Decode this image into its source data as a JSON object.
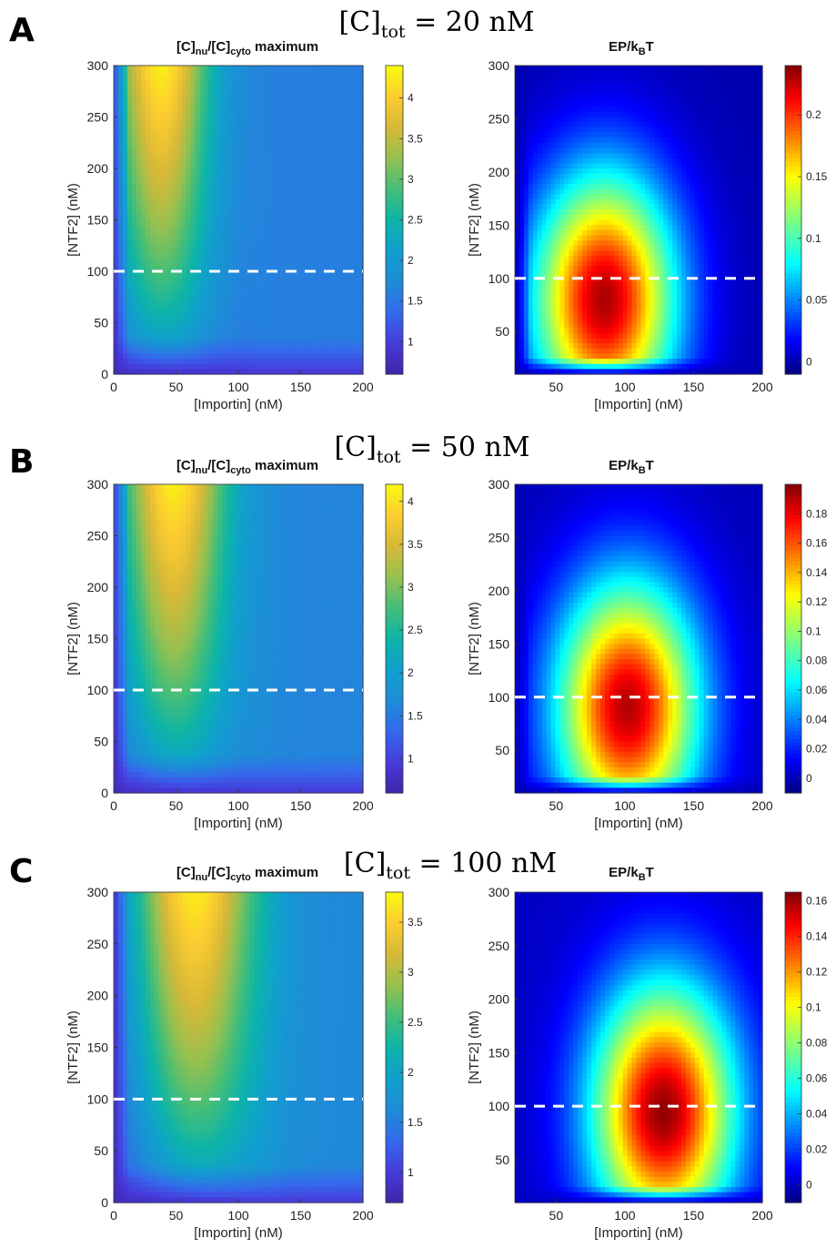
{
  "figure": {
    "x_axis_label": "[Importin] (nM)",
    "y_axis_label": "[NTF2] (nM)",
    "dashed_line_ntf2": 100,
    "rows": [
      {
        "letter": "A",
        "title_base": "[C]",
        "title_sub": "tot",
        "title_rest": " = 20 nM"
      },
      {
        "letter": "B",
        "title_base": "[C]",
        "title_sub": "tot",
        "title_rest": " = 50 nM"
      },
      {
        "letter": "C",
        "title_base": "[C]",
        "title_sub": "tot",
        "title_rest": " = 100 nM"
      }
    ],
    "left_title": {
      "p1": "[C]",
      "s1": "nu",
      "p2": "/[C]",
      "s2": "cyto",
      "p3": " maximum"
    },
    "right_title": {
      "p1": "EP/k",
      "s1": "B",
      "p2": "T"
    }
  },
  "chart_data": [
    {
      "type": "heatmap",
      "panel": "A",
      "title": "[C]nu/[C]cyto maximum",
      "xlabel": "[Importin] (nM)",
      "ylabel": "[NTF2] (nM)",
      "xlim": [
        0,
        200
      ],
      "ylim": [
        0,
        300
      ],
      "xticks": [
        0,
        50,
        100,
        150,
        200
      ],
      "yticks": [
        0,
        50,
        100,
        150,
        200,
        250,
        300
      ],
      "colormap": "parula",
      "clim": [
        0.6,
        4.4
      ],
      "cbar_ticks": [
        "1",
        "1.5",
        "2",
        "2.5",
        "3",
        "3.5",
        "4"
      ],
      "peak": {
        "x": 38,
        "y": 270,
        "value": 4.3
      },
      "min_value": 0.6
    },
    {
      "type": "heatmap",
      "panel": "A",
      "title": "EP/kBT",
      "xlabel": "[Importin] (nM)",
      "ylabel": "[NTF2] (nM)",
      "xlim": [
        20,
        200
      ],
      "ylim": [
        10,
        300
      ],
      "xticks": [
        50,
        100,
        150,
        200
      ],
      "yticks": [
        50,
        100,
        150,
        200,
        250,
        300
      ],
      "colormap": "jet",
      "clim": [
        -0.01,
        0.24
      ],
      "cbar_ticks": [
        "0",
        "0.05",
        "0.1",
        "0.15",
        "0.2"
      ],
      "peak": {
        "x": 85,
        "y": 80,
        "value": 0.23
      }
    },
    {
      "type": "heatmap",
      "panel": "B",
      "title": "[C]nu/[C]cyto maximum",
      "xlabel": "[Importin] (nM)",
      "ylabel": "[NTF2] (nM)",
      "xlim": [
        0,
        200
      ],
      "ylim": [
        0,
        300
      ],
      "xticks": [
        0,
        50,
        100,
        150,
        200
      ],
      "yticks": [
        0,
        50,
        100,
        150,
        200,
        250,
        300
      ],
      "colormap": "parula",
      "clim": [
        0.6,
        4.2
      ],
      "cbar_ticks": [
        "1",
        "1.5",
        "2",
        "2.5",
        "3",
        "3.5",
        "4"
      ],
      "peak": {
        "x": 48,
        "y": 260,
        "value": 4.1
      },
      "min_value": 0.6
    },
    {
      "type": "heatmap",
      "panel": "B",
      "title": "EP/kBT",
      "xlabel": "[Importin] (nM)",
      "ylabel": "[NTF2] (nM)",
      "xlim": [
        20,
        200
      ],
      "ylim": [
        10,
        300
      ],
      "xticks": [
        50,
        100,
        150,
        200
      ],
      "yticks": [
        50,
        100,
        150,
        200,
        250,
        300
      ],
      "colormap": "jet",
      "clim": [
        -0.01,
        0.2
      ],
      "cbar_ticks": [
        "0",
        "0.02",
        "0.04",
        "0.06",
        "0.08",
        "0.1",
        "0.12",
        "0.14",
        "0.16",
        "0.18"
      ],
      "peak": {
        "x": 102,
        "y": 90,
        "value": 0.19
      }
    },
    {
      "type": "heatmap",
      "panel": "C",
      "title": "[C]nu/[C]cyto maximum",
      "xlabel": "[Importin] (nM)",
      "ylabel": "[NTF2] (nM)",
      "xlim": [
        0,
        200
      ],
      "ylim": [
        0,
        300
      ],
      "xticks": [
        0,
        50,
        100,
        150,
        200
      ],
      "yticks": [
        0,
        50,
        100,
        150,
        200,
        250,
        300
      ],
      "colormap": "parula",
      "clim": [
        0.7,
        3.8
      ],
      "cbar_ticks": [
        "1",
        "1.5",
        "2",
        "2.5",
        "3",
        "3.5"
      ],
      "peak": {
        "x": 65,
        "y": 260,
        "value": 3.7
      },
      "min_value": 0.7
    },
    {
      "type": "heatmap",
      "panel": "C",
      "title": "EP/kBT",
      "xlabel": "[Importin] (nM)",
      "ylabel": "[NTF2] (nM)",
      "xlim": [
        20,
        200
      ],
      "ylim": [
        10,
        300
      ],
      "xticks": [
        50,
        100,
        150,
        200
      ],
      "yticks": [
        50,
        100,
        150,
        200,
        250,
        300
      ],
      "colormap": "jet",
      "clim": [
        -0.01,
        0.165
      ],
      "cbar_ticks": [
        "0",
        "0.02",
        "0.04",
        "0.06",
        "0.08",
        "0.1",
        "0.12",
        "0.14",
        "0.16"
      ],
      "peak": {
        "x": 128,
        "y": 95,
        "value": 0.162
      }
    }
  ]
}
